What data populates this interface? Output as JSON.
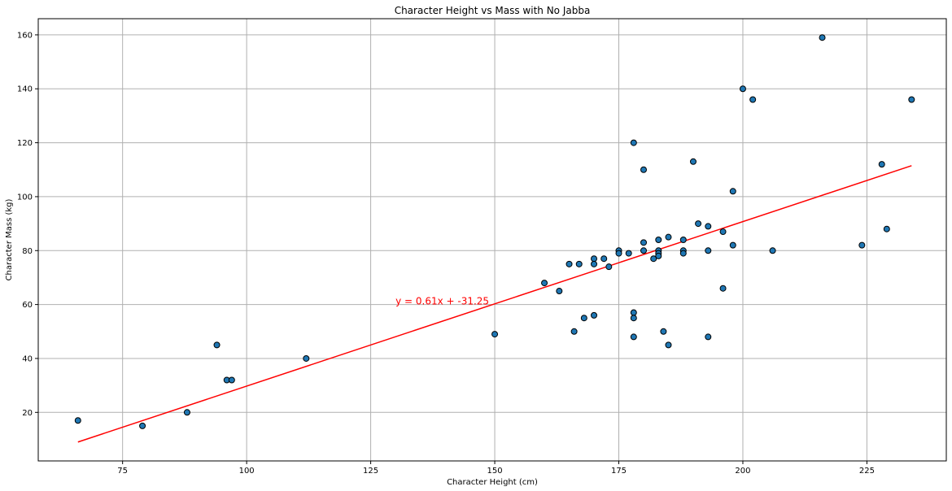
{
  "chart_data": {
    "type": "scatter",
    "title": "Character Height vs Mass with No Jabba",
    "xlabel": "Character Height (cm)",
    "ylabel": "Character Mass (kg)",
    "xlim": [
      58,
      241
    ],
    "ylim": [
      2,
      166
    ],
    "xticks": [
      75,
      100,
      125,
      150,
      175,
      200,
      225
    ],
    "yticks": [
      20,
      40,
      60,
      80,
      100,
      120,
      140,
      160
    ],
    "grid": true,
    "point_color": "#1f77b4",
    "point_edge_color": "#000000",
    "line_color": "#ff0000",
    "points": [
      [
        66,
        17
      ],
      [
        79,
        15
      ],
      [
        88,
        20
      ],
      [
        94,
        45
      ],
      [
        96,
        32
      ],
      [
        97,
        32
      ],
      [
        112,
        40
      ],
      [
        150,
        49
      ],
      [
        160,
        68
      ],
      [
        163,
        65
      ],
      [
        165,
        75
      ],
      [
        166,
        50
      ],
      [
        167,
        75
      ],
      [
        168,
        55
      ],
      [
        170,
        77
      ],
      [
        170,
        75
      ],
      [
        170,
        56
      ],
      [
        172,
        77
      ],
      [
        173,
        74
      ],
      [
        175,
        80
      ],
      [
        175,
        79
      ],
      [
        177,
        79
      ],
      [
        178,
        120
      ],
      [
        178,
        57
      ],
      [
        178,
        55
      ],
      [
        178,
        48
      ],
      [
        180,
        110
      ],
      [
        180,
        83
      ],
      [
        180,
        80
      ],
      [
        182,
        77
      ],
      [
        183,
        84
      ],
      [
        183,
        80
      ],
      [
        183,
        79
      ],
      [
        183,
        78
      ],
      [
        184,
        50
      ],
      [
        185,
        85
      ],
      [
        185,
        45
      ],
      [
        188,
        84
      ],
      [
        188,
        80
      ],
      [
        188,
        79
      ],
      [
        190,
        113
      ],
      [
        191,
        90
      ],
      [
        193,
        89
      ],
      [
        193,
        80
      ],
      [
        193,
        48
      ],
      [
        196,
        87
      ],
      [
        196,
        66
      ],
      [
        198,
        102
      ],
      [
        198,
        82
      ],
      [
        200,
        140
      ],
      [
        202,
        136
      ],
      [
        206,
        80
      ],
      [
        216,
        159
      ],
      [
        224,
        82
      ],
      [
        228,
        112
      ],
      [
        229,
        88
      ],
      [
        234,
        136
      ]
    ],
    "regression": {
      "slope": 0.61,
      "intercept": -31.25,
      "x_range": [
        66,
        234
      ],
      "label": "y = 0.61x + -31.25",
      "label_position": [
        130,
        60
      ]
    }
  }
}
